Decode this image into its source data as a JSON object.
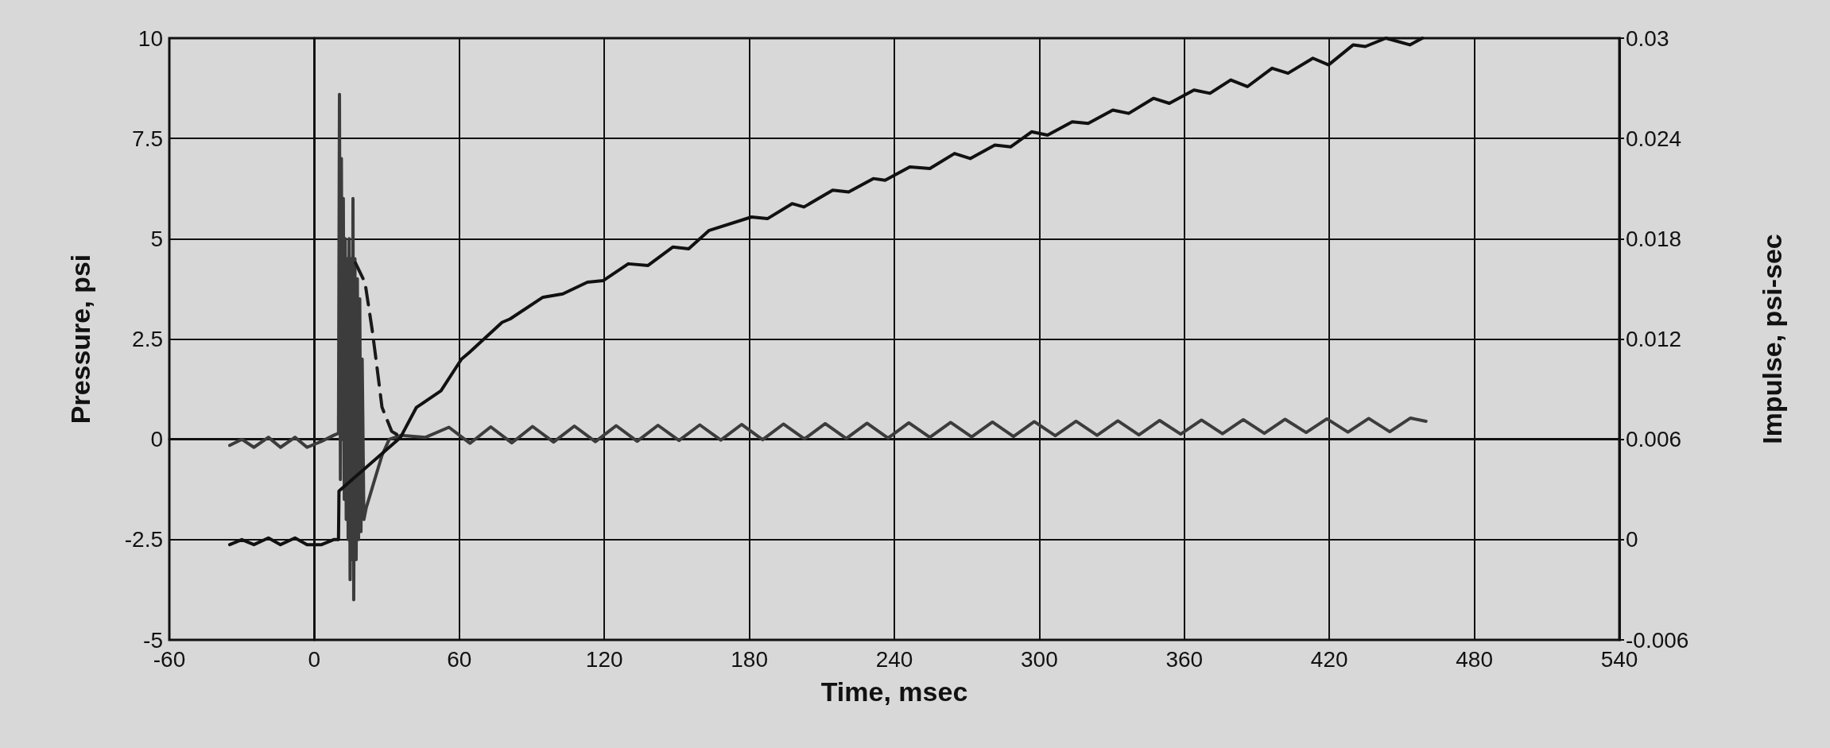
{
  "chart_data": {
    "type": "line",
    "xlabel": "Time, msec",
    "ylabel": "Pressure, psi",
    "y2label": "Impulse, psi-sec",
    "xlim": [
      -60,
      540
    ],
    "xticks": [
      -60,
      0,
      60,
      120,
      180,
      240,
      300,
      360,
      420,
      480,
      540
    ],
    "ylim": [
      -5,
      10
    ],
    "yticks": [
      -5,
      -2.5,
      0,
      2.5,
      5,
      7.5,
      10
    ],
    "y2lim": [
      -0.006,
      0.03
    ],
    "y2ticks": [
      -0.006,
      0,
      0.006,
      0.012,
      0.018,
      0.024,
      0.03
    ],
    "grid": true,
    "legend": false,
    "marker": "none",
    "series": [
      {
        "color": "#3c3c3c",
        "line_style": "solid",
        "x": [
          -35,
          -30,
          -25,
          -19,
          -14,
          -8,
          -3,
          3,
          8,
          10,
          10.4,
          10.8,
          11.2,
          11.6,
          12,
          12.4,
          12.8,
          13.2,
          13.6,
          14,
          14.4,
          14.8,
          15.2,
          15.6,
          16,
          16.3,
          16.8,
          17.3,
          17.8,
          18.3,
          18.8,
          19.3,
          19.8,
          20.5,
          21.5,
          23,
          25,
          28,
          31,
          36,
          46,
          55.7,
          64.4,
          73,
          81.7,
          90.3,
          99,
          107.6,
          116.3,
          124.9,
          133.6,
          142.2,
          150.9,
          159.5,
          168.2,
          176.8,
          185.5,
          194.1,
          202.8,
          211.4,
          220.1,
          228.7,
          237.4,
          246,
          254.7,
          263.3,
          272,
          280.6,
          289.3,
          297.9,
          306.6,
          315.2,
          323.9,
          332.5,
          341.2,
          349.8,
          358.5,
          367.1,
          375.8,
          384.4,
          393.1,
          401.7,
          410.4,
          419,
          427.7,
          436.3,
          445,
          453.6,
          460
        ],
        "values": [
          -0.15,
          0,
          -0.2,
          0.05,
          -0.2,
          0.05,
          -0.2,
          -0.05,
          0.1,
          0.15,
          8.6,
          -1,
          7,
          0,
          6,
          -1.5,
          5,
          -2,
          4.5,
          -2.5,
          5,
          -3.5,
          4.5,
          -3,
          6,
          -4,
          4.5,
          -3,
          4,
          -2.5,
          3.5,
          -2.3,
          2,
          -2,
          -1.7,
          -1.4,
          -1,
          -0.4,
          0,
          0.1,
          0.05,
          0.3,
          -0.1,
          0.31,
          -0.09,
          0.32,
          -0.07,
          0.33,
          -0.06,
          0.34,
          -0.05,
          0.35,
          -0.03,
          0.36,
          -0.02,
          0.37,
          -0.01,
          0.38,
          0.01,
          0.39,
          0.02,
          0.4,
          0.03,
          0.41,
          0.05,
          0.42,
          0.06,
          0.43,
          0.07,
          0.44,
          0.09,
          0.45,
          0.1,
          0.46,
          0.11,
          0.47,
          0.13,
          0.48,
          0.14,
          0.49,
          0.15,
          0.5,
          0.17,
          0.51,
          0.18,
          0.52,
          0.19,
          0.53,
          0.45
        ]
      },
      {
        "color": "#1a1a1a",
        "line_style": "dashed",
        "x": [
          17,
          21,
          24,
          25.5,
          28,
          32,
          36
        ],
        "values": [
          4.4,
          3.9,
          2.7,
          2,
          0.8,
          0.2,
          0.05
        ]
      },
      {
        "color": "#111111",
        "line_style": "solid",
        "axis": "y2",
        "x": [
          -35,
          -30,
          -25,
          -19,
          -14,
          -8,
          -3,
          3,
          8,
          10,
          10.2,
          35.6,
          42.2,
          52.4,
          60.9,
          64.2,
          77.7,
          81,
          94.6,
          102.8,
          113,
          119.6,
          129.9,
          138.1,
          148.3,
          154.9,
          163.4,
          180.9,
          187.5,
          197.7,
          202.6,
          214.5,
          221.1,
          231.3,
          236.2,
          246.4,
          254.7,
          264.9,
          271.4,
          281.6,
          288.2,
          296.8,
          303.4,
          313.6,
          320.2,
          330.4,
          337,
          347.2,
          353.8,
          364,
          370.6,
          379.2,
          386.1,
          396.3,
          402.9,
          413.2,
          419.7,
          429.9,
          434.9,
          443.4,
          453.3,
          458.5
        ],
        "values": [
          -0.0003,
          0,
          -0.0003,
          0.0001,
          -0.0003,
          0.0001,
          -0.0003,
          -0.0003,
          0,
          0,
          0.0029,
          0.0061,
          0.0079,
          0.0089,
          0.0108,
          0.0112,
          0.013,
          0.0132,
          0.0145,
          0.0147,
          0.0154,
          0.0155,
          0.0165,
          0.0164,
          0.0175,
          0.0174,
          0.0185,
          0.0193,
          0.0192,
          0.0201,
          0.0199,
          0.0209,
          0.0208,
          0.0216,
          0.0215,
          0.0223,
          0.0222,
          0.0231,
          0.0228,
          0.0236,
          0.0235,
          0.0244,
          0.0242,
          0.025,
          0.0249,
          0.0257,
          0.0255,
          0.0264,
          0.0261,
          0.0269,
          0.0267,
          0.0275,
          0.0271,
          0.0282,
          0.0279,
          0.0288,
          0.0284,
          0.0296,
          0.0295,
          0.03,
          0.0296,
          0.03
        ]
      }
    ]
  }
}
